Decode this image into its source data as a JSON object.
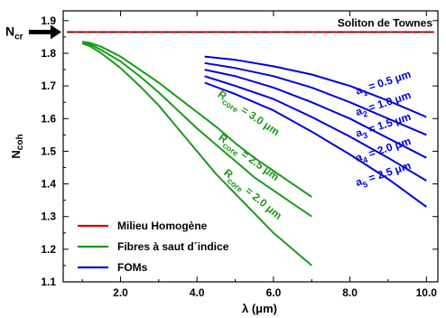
{
  "chart_data": {
    "type": "line",
    "xlabel": "λ (μm)",
    "ylabel": "N",
    "ylabel_sub": "coh",
    "xlim": [
      0.5,
      10.3
    ],
    "ylim": [
      1.1,
      1.93
    ],
    "x_ticks": [
      2.0,
      4.0,
      6.0,
      8.0,
      10.0
    ],
    "x_tick_labels": [
      "2.0",
      "4.0",
      "6.0",
      "8.0",
      "10.0"
    ],
    "y_ticks": [
      1.1,
      1.2,
      1.3,
      1.4,
      1.5,
      1.6,
      1.7,
      1.8,
      1.9
    ],
    "y_tick_labels": [
      "1.1",
      "1.2",
      "1.3",
      "1.4",
      "1.5",
      "1.6",
      "1.7",
      "1.8",
      "1.9"
    ],
    "reference": {
      "label": "Soliton de Townes",
      "y": 1.865,
      "ncr_label": "N",
      "ncr_sub": "cr"
    },
    "series": [
      {
        "name": "Milieu Homogène",
        "color": "#dd0000",
        "group": "homogene",
        "x": [
          0.6,
          10.2
        ],
        "y": [
          1.865,
          1.865
        ]
      },
      {
        "group": "fibres",
        "color": "#1a9a1a",
        "x": [
          1.0,
          1.2,
          1.5,
          2.0,
          2.5,
          3.0,
          3.5,
          4.0,
          4.5,
          5.0,
          5.5,
          6.0,
          6.5,
          7.0
        ],
        "y": [
          1.835,
          1.832,
          1.82,
          1.79,
          1.75,
          1.71,
          1.665,
          1.62,
          1.575,
          1.525,
          1.48,
          1.44,
          1.4,
          1.36
        ]
      },
      {
        "group": "fibres",
        "color": "#1a9a1a",
        "x": [
          1.0,
          1.2,
          1.5,
          2.0,
          2.5,
          3.0,
          3.5,
          4.0,
          4.5,
          5.0,
          5.5,
          6.0,
          6.5,
          7.0
        ],
        "y": [
          1.833,
          1.828,
          1.81,
          1.775,
          1.73,
          1.68,
          1.625,
          1.57,
          1.52,
          1.47,
          1.42,
          1.38,
          1.34,
          1.3
        ]
      },
      {
        "group": "fibres",
        "color": "#1a9a1a",
        "x": [
          1.0,
          1.2,
          1.5,
          2.0,
          2.5,
          3.0,
          3.5,
          4.0,
          4.5,
          5.0,
          5.5,
          6.0,
          6.5,
          7.0
        ],
        "y": [
          1.83,
          1.822,
          1.8,
          1.755,
          1.7,
          1.64,
          1.57,
          1.5,
          1.43,
          1.37,
          1.31,
          1.25,
          1.2,
          1.15
        ]
      },
      {
        "group": "foms",
        "color": "#0000dd",
        "x": [
          4.2,
          5.0,
          6.0,
          7.0,
          8.0,
          9.0,
          10.0
        ],
        "y": [
          1.79,
          1.78,
          1.76,
          1.735,
          1.7,
          1.655,
          1.605
        ]
      },
      {
        "group": "foms",
        "color": "#0000dd",
        "x": [
          4.2,
          5.0,
          6.0,
          7.0,
          8.0,
          9.0,
          10.0
        ],
        "y": [
          1.77,
          1.755,
          1.73,
          1.695,
          1.65,
          1.6,
          1.55
        ]
      },
      {
        "group": "foms",
        "color": "#0000dd",
        "x": [
          4.2,
          5.0,
          6.0,
          7.0,
          8.0,
          9.0,
          10.0
        ],
        "y": [
          1.75,
          1.73,
          1.695,
          1.65,
          1.6,
          1.54,
          1.48
        ]
      },
      {
        "group": "foms",
        "color": "#0000dd",
        "x": [
          4.2,
          5.0,
          6.0,
          7.0,
          8.0,
          9.0,
          10.0
        ],
        "y": [
          1.73,
          1.7,
          1.66,
          1.605,
          1.545,
          1.48,
          1.41
        ]
      },
      {
        "group": "foms",
        "color": "#0000dd",
        "x": [
          4.2,
          5.0,
          6.0,
          7.0,
          8.0,
          9.0,
          10.0
        ],
        "y": [
          1.71,
          1.675,
          1.625,
          1.56,
          1.49,
          1.415,
          1.33
        ]
      }
    ],
    "legend": {
      "placement": "bottom-left",
      "entries": [
        {
          "label": "Milieu Homogène",
          "color": "#dd0000"
        },
        {
          "label": "Fibres à saut d´indice",
          "color": "#1a9a1a"
        },
        {
          "label": "FOMs",
          "color": "#0000dd"
        }
      ]
    },
    "annotations": [
      {
        "sym": "R",
        "sub": "core",
        "text": " = 3.0 μm",
        "color": "#1a9a1a",
        "x": 5.3,
        "y": 1.608,
        "angle": 34
      },
      {
        "sym": "R",
        "sub": "core",
        "text": " = 2.5 μm",
        "color": "#1a9a1a",
        "x": 5.3,
        "y": 1.473,
        "angle": 36
      },
      {
        "sym": "R",
        "sub": "core",
        "text": " = 2.0 μm",
        "color": "#1a9a1a",
        "x": 5.4,
        "y": 1.36,
        "angle": 40
      },
      {
        "sym": "a",
        "sub": "1",
        "text": " = 0.5 μm",
        "color": "#0000dd",
        "x": 8.9,
        "y": 1.7,
        "angle": -18
      },
      {
        "sym": "a",
        "sub": "2",
        "text": " = 1.0 μm",
        "color": "#0000dd",
        "x": 8.9,
        "y": 1.636,
        "angle": -18
      },
      {
        "sym": "a",
        "sub": "3",
        "text": " = 1.5 μm",
        "color": "#0000dd",
        "x": 8.9,
        "y": 1.57,
        "angle": -18
      },
      {
        "sym": "a",
        "sub": "4",
        "text": " = 2.0 μm",
        "color": "#0000dd",
        "x": 8.9,
        "y": 1.495,
        "angle": -18
      },
      {
        "sym": "a",
        "sub": "5",
        "text": " = 2.5 μm",
        "color": "#0000dd",
        "x": 8.9,
        "y": 1.42,
        "angle": -18
      }
    ]
  }
}
